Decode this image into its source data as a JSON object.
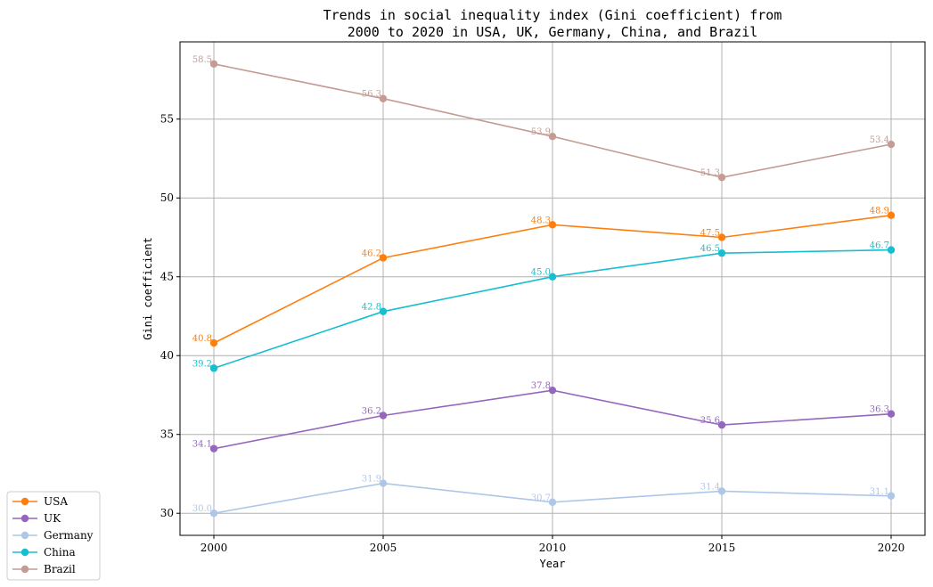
{
  "chart_data": {
    "type": "line",
    "title_line1": "Trends in social inequality index (Gini coefficient) from",
    "title_line2": "2000 to 2020 in USA, UK, Germany, China, and Brazil",
    "xlabel": "Year",
    "ylabel": "Gini coefficient",
    "x": [
      2000,
      2005,
      2010,
      2015,
      2020
    ],
    "xlim": [
      1999,
      2021
    ],
    "ylim": [
      28.6,
      59.9
    ],
    "yticks": [
      30,
      35,
      40,
      45,
      50,
      55
    ],
    "grid": true,
    "legend_position": "bottom-left",
    "series": [
      {
        "name": "USA",
        "color": "#ff7f0e",
        "values": [
          40.8,
          46.2,
          48.3,
          47.5,
          48.9
        ]
      },
      {
        "name": "UK",
        "color": "#9467bd",
        "values": [
          34.1,
          36.2,
          37.8,
          35.6,
          36.3
        ]
      },
      {
        "name": "Germany",
        "color": "#aec7e8",
        "values": [
          30.0,
          31.9,
          30.7,
          31.4,
          31.1
        ]
      },
      {
        "name": "China",
        "color": "#17becf",
        "values": [
          39.2,
          42.8,
          45.0,
          46.5,
          46.7
        ]
      },
      {
        "name": "Brazil",
        "color": "#c49c94",
        "values": [
          58.5,
          56.3,
          53.9,
          51.3,
          53.4
        ]
      }
    ]
  }
}
